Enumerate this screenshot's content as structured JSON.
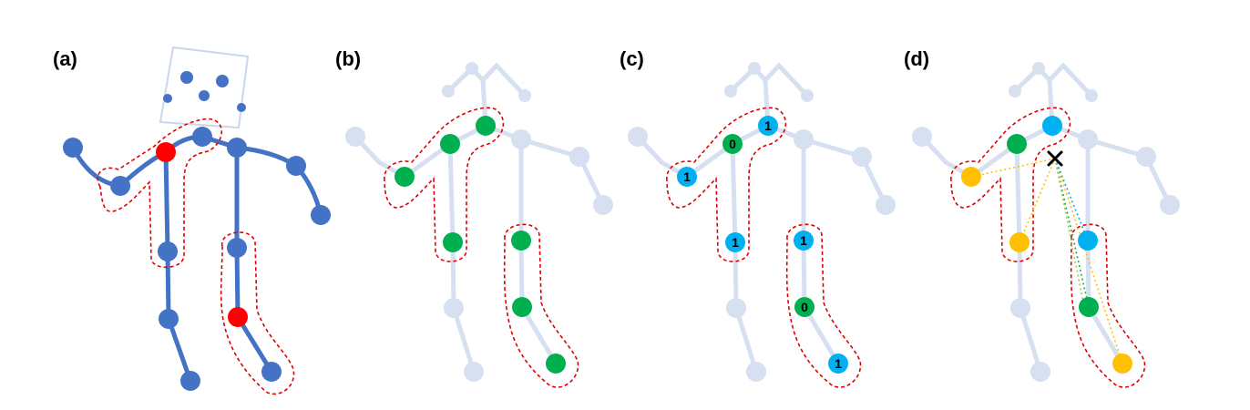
{
  "panels": [
    {
      "id": "a",
      "label": "(a)"
    },
    {
      "id": "b",
      "label": "(b)"
    },
    {
      "id": "c",
      "label": "(c)",
      "labels": [
        "1",
        "0",
        "1",
        "1",
        "1",
        "0",
        "1"
      ]
    },
    {
      "id": "d",
      "label": "(d)"
    }
  ],
  "colors": {
    "skeleton": "#4472C4",
    "skeleton_faded": "#D6E0F0",
    "highlight": "#FF0000",
    "green": "#00B050",
    "blue": "#00B0F0",
    "yellow": "#FFC000",
    "outline": "#E00000",
    "box": "#C9D6EC"
  },
  "icons": [
    "cross-icon"
  ]
}
